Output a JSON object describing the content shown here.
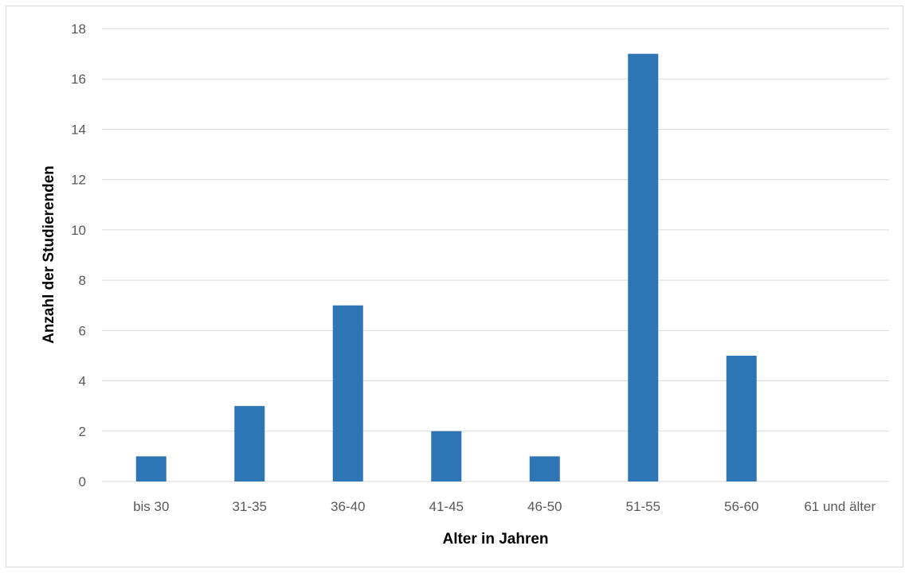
{
  "chart_data": {
    "type": "bar",
    "xlabel": "Alter in Jahren",
    "ylabel": "Anzahl der Studierenden",
    "categories": [
      "bis 30",
      "31-35",
      "36-40",
      "41-45",
      "46-50",
      "51-55",
      "56-60",
      "61 und älter"
    ],
    "values": [
      1,
      3,
      7,
      2,
      1,
      17,
      5,
      0
    ],
    "ylim": [
      0,
      18
    ],
    "yticks": [
      0,
      2,
      4,
      6,
      8,
      10,
      12,
      14,
      16,
      18
    ],
    "grid": true,
    "bar_color": "#2e75b6",
    "grid_color": "#d9d9d9"
  }
}
